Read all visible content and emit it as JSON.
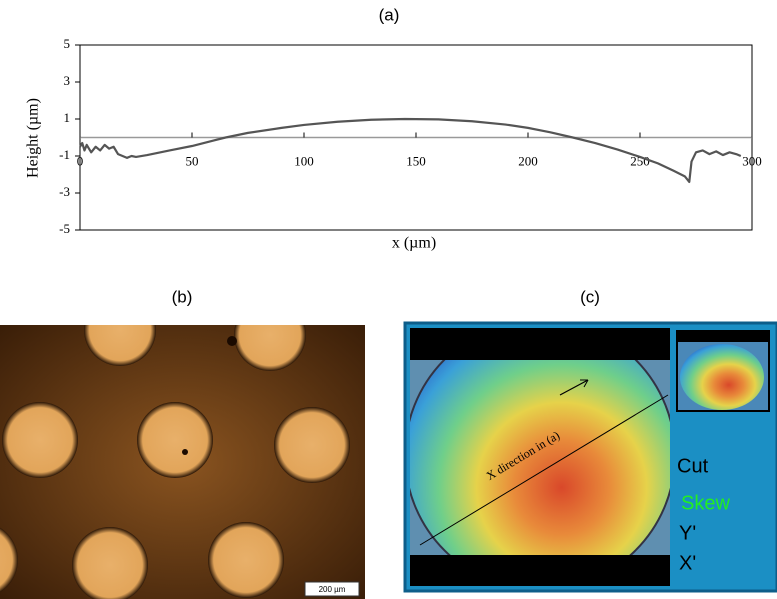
{
  "chart_data": {
    "type": "line",
    "title": "(a)",
    "x_label": "x (µm)",
    "y_label": "Height (µm)",
    "x": [
      0,
      1,
      2,
      3,
      5,
      7,
      9,
      11,
      13,
      15,
      17,
      19,
      21,
      23,
      25,
      30,
      40,
      50,
      60,
      65,
      75,
      90,
      100,
      115,
      130,
      145,
      160,
      175,
      190,
      200,
      210,
      220,
      230,
      240,
      250,
      258,
      265,
      270,
      272,
      273,
      275,
      278,
      281,
      284,
      287,
      290,
      293,
      295
    ],
    "values": [
      -0.5,
      -0.3,
      -0.7,
      -0.4,
      -0.8,
      -0.5,
      -0.7,
      -0.4,
      -0.6,
      -0.5,
      -0.9,
      -1.0,
      -1.1,
      -1.0,
      -1.05,
      -0.95,
      -0.7,
      -0.46,
      -0.15,
      0,
      0.25,
      0.52,
      0.68,
      0.85,
      0.96,
      1.0,
      0.98,
      0.88,
      0.7,
      0.52,
      0.28,
      0,
      -0.3,
      -0.65,
      -1.05,
      -1.4,
      -1.8,
      -2.1,
      -2.4,
      -1.3,
      -0.8,
      -0.7,
      -0.9,
      -0.75,
      -0.95,
      -0.8,
      -0.9,
      -1.0
    ],
    "color": "#555555",
    "xlim": [
      0,
      300
    ],
    "ylim": [
      -5,
      5
    ],
    "xticks": [
      0,
      50,
      100,
      150,
      200,
      250,
      300
    ],
    "yticks": [
      -5,
      -3,
      -1,
      1,
      3,
      5
    ],
    "grid": false
  },
  "panel_b": {
    "label": "(b)",
    "scale_bar": "200 µm"
  },
  "panel_c": {
    "label": "(c)",
    "annotation": "X direction in (a)",
    "menu": [
      "Cut",
      "Skew",
      "Y'",
      "X'"
    ]
  }
}
